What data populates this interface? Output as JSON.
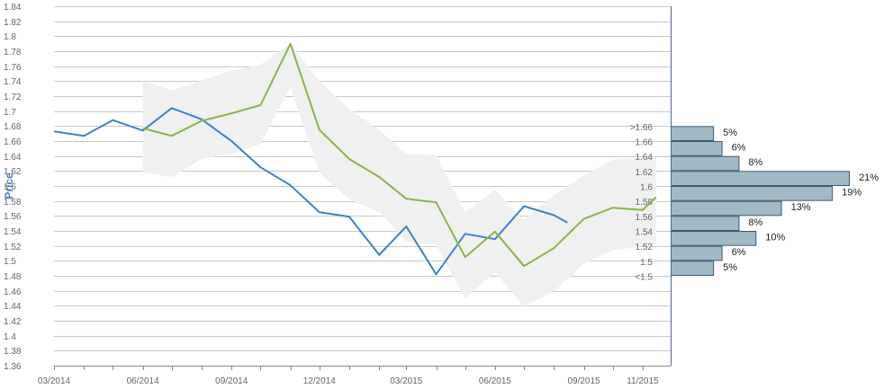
{
  "chart_data": {
    "type": "line",
    "ylabel": "Price",
    "ylim": [
      1.36,
      1.84
    ],
    "y_ticks": [
      "1.36",
      "1.38",
      "1.4",
      "1.42",
      "1.44",
      "1.46",
      "1.48",
      "1.5",
      "1.52",
      "1.54",
      "1.56",
      "1.58",
      "1.6",
      "1.62",
      "1.64",
      "1.66",
      "1.68",
      "1.7",
      "1.72",
      "1.74",
      "1.76",
      "1.78",
      "1.8",
      "1.82",
      "1.84"
    ],
    "x_ticks": [
      "03/2014",
      "06/2014",
      "09/2014",
      "12/2014",
      "03/2015",
      "06/2015",
      "09/2015",
      "11/2015"
    ],
    "grid": true,
    "series": [
      {
        "color": "#3b82c8",
        "points": [
          [
            "2014-03-01",
            1.673
          ],
          [
            "2014-04-01",
            1.667
          ],
          [
            "2014-05-01",
            1.688
          ],
          [
            "2014-06-01",
            1.674
          ],
          [
            "2014-07-01",
            1.704
          ],
          [
            "2014-08-01",
            1.689
          ],
          [
            "2014-09-01",
            1.66
          ],
          [
            "2014-10-01",
            1.625
          ],
          [
            "2014-11-01",
            1.601
          ],
          [
            "2014-12-01",
            1.565
          ],
          [
            "2015-01-01",
            1.559
          ],
          [
            "2015-02-01",
            1.508
          ],
          [
            "2015-03-01",
            1.546
          ],
          [
            "2015-04-01",
            1.482
          ],
          [
            "2015-05-01",
            1.536
          ],
          [
            "2015-06-01",
            1.529
          ],
          [
            "2015-07-01",
            1.573
          ],
          [
            "2015-08-01",
            1.561
          ],
          [
            "2015-08-15",
            1.551
          ]
        ]
      },
      {
        "color": "#8ab44a",
        "points": [
          [
            "2014-06-01",
            1.677
          ],
          [
            "2014-07-01",
            1.667
          ],
          [
            "2014-08-01",
            1.687
          ],
          [
            "2014-09-01",
            1.697
          ],
          [
            "2014-10-01",
            1.708
          ],
          [
            "2014-11-01",
            1.79
          ],
          [
            "2014-12-01",
            1.675
          ],
          [
            "2015-01-01",
            1.636
          ],
          [
            "2015-02-01",
            1.612
          ],
          [
            "2015-03-01",
            1.583
          ],
          [
            "2015-04-01",
            1.578
          ],
          [
            "2015-05-01",
            1.505
          ],
          [
            "2015-06-01",
            1.539
          ],
          [
            "2015-07-01",
            1.493
          ],
          [
            "2015-08-01",
            1.517
          ],
          [
            "2015-09-01",
            1.556
          ],
          [
            "2015-10-01",
            1.571
          ],
          [
            "2015-11-01",
            1.568
          ],
          [
            "2015-11-15",
            1.585
          ]
        ]
      }
    ],
    "band": {
      "color": "#f0f0f0",
      "points": [
        [
          "2014-06-01",
          1.618,
          1.74
        ],
        [
          "2014-07-01",
          1.612,
          1.728
        ],
        [
          "2014-08-01",
          1.636,
          1.741
        ],
        [
          "2014-09-01",
          1.643,
          1.754
        ],
        [
          "2014-10-01",
          1.656,
          1.762
        ],
        [
          "2014-11-01",
          1.732,
          1.79
        ],
        [
          "2014-12-01",
          1.618,
          1.74
        ],
        [
          "2015-01-01",
          1.582,
          1.703
        ],
        [
          "2015-02-01",
          1.565,
          1.675
        ],
        [
          "2015-03-01",
          1.526,
          1.643
        ],
        [
          "2015-04-01",
          1.521,
          1.641
        ],
        [
          "2015-05-01",
          1.45,
          1.565
        ],
        [
          "2015-06-01",
          1.485,
          1.595
        ],
        [
          "2015-07-01",
          1.439,
          1.555
        ],
        [
          "2015-08-01",
          1.459,
          1.588
        ],
        [
          "2015-09-01",
          1.496,
          1.614
        ],
        [
          "2015-10-01",
          1.514,
          1.635
        ],
        [
          "2015-11-15",
          1.522,
          1.639
        ]
      ]
    },
    "histogram": {
      "color": "#a2b9c6",
      "bins": [
        {
          "label": ">1.66",
          "percent": 5,
          "pct_label": "5%"
        },
        {
          "label": "1.66",
          "percent": 6,
          "pct_label": "6%"
        },
        {
          "label": "1.64",
          "percent": 8,
          "pct_label": "8%"
        },
        {
          "label": "1.62",
          "percent": 21,
          "pct_label": "21%"
        },
        {
          "label": "1.6",
          "percent": 19,
          "pct_label": "19%"
        },
        {
          "label": "1.58",
          "percent": 13,
          "pct_label": "13%"
        },
        {
          "label": "1.56",
          "percent": 8,
          "pct_label": "8%"
        },
        {
          "label": "1.54",
          "percent": 10,
          "pct_label": "10%"
        },
        {
          "label": "1.52",
          "percent": 6,
          "pct_label": "6%"
        },
        {
          "label": "1.5",
          "percent": 5,
          "pct_label": "5%"
        },
        {
          "label": "<1.5",
          "percent": null,
          "pct_label": ""
        }
      ]
    }
  }
}
